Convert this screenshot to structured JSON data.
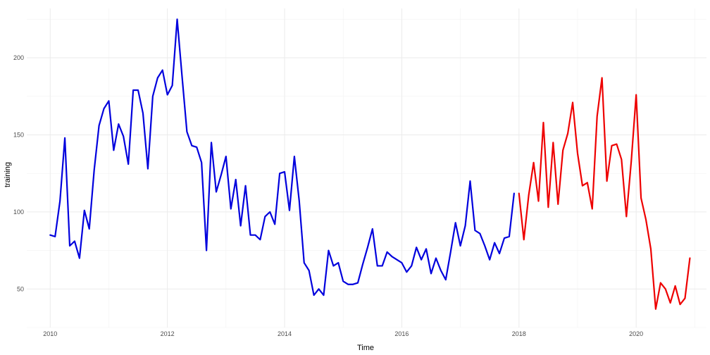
{
  "chart_data": {
    "type": "line",
    "xlabel": "Time",
    "ylabel": "training",
    "xlim": [
      2009.6,
      2021.2
    ],
    "ylim": [
      25,
      232
    ],
    "x_ticks": [
      2010,
      2012,
      2014,
      2016,
      2018,
      2020
    ],
    "x_tick_labels": [
      "2010",
      "2012",
      "2014",
      "2016",
      "2018",
      "2020"
    ],
    "y_ticks": [
      50,
      100,
      150,
      200
    ],
    "y_tick_labels": [
      "50",
      "100",
      "150",
      "200"
    ],
    "grid": true,
    "series": [
      {
        "color": "#0000dd",
        "start": 2010,
        "step": 0.0833333,
        "values": [
          85,
          84,
          107,
          148,
          78,
          81,
          70,
          101,
          89,
          127,
          156,
          167,
          172,
          140,
          157,
          149,
          131,
          179,
          179,
          164,
          128,
          175,
          187,
          192,
          176,
          182,
          225,
          188,
          152,
          143,
          142,
          132,
          75,
          145,
          113,
          124,
          136,
          102,
          121,
          91,
          117,
          85,
          85,
          82,
          97,
          100,
          92,
          125,
          126,
          101,
          136,
          107,
          67,
          62,
          46,
          50,
          46,
          75,
          65,
          67,
          55,
          53,
          53,
          54,
          66,
          77,
          89,
          65,
          65,
          74,
          71,
          69,
          67,
          61,
          65,
          77,
          69,
          76,
          60,
          70,
          62,
          56,
          74,
          93,
          78,
          91,
          120,
          88,
          86,
          78,
          69,
          80,
          73,
          83,
          84,
          112
        ]
      },
      {
        "color": "#ee0000",
        "start": 2018,
        "step": 0.0833333,
        "values": [
          112,
          82,
          111,
          132,
          107,
          158,
          103,
          145,
          105,
          140,
          151,
          171,
          138,
          117,
          119,
          102,
          162,
          187,
          120,
          143,
          144,
          134,
          97,
          133,
          176,
          109,
          95,
          76,
          37,
          54,
          50,
          41,
          52,
          40,
          44,
          70
        ]
      }
    ]
  }
}
